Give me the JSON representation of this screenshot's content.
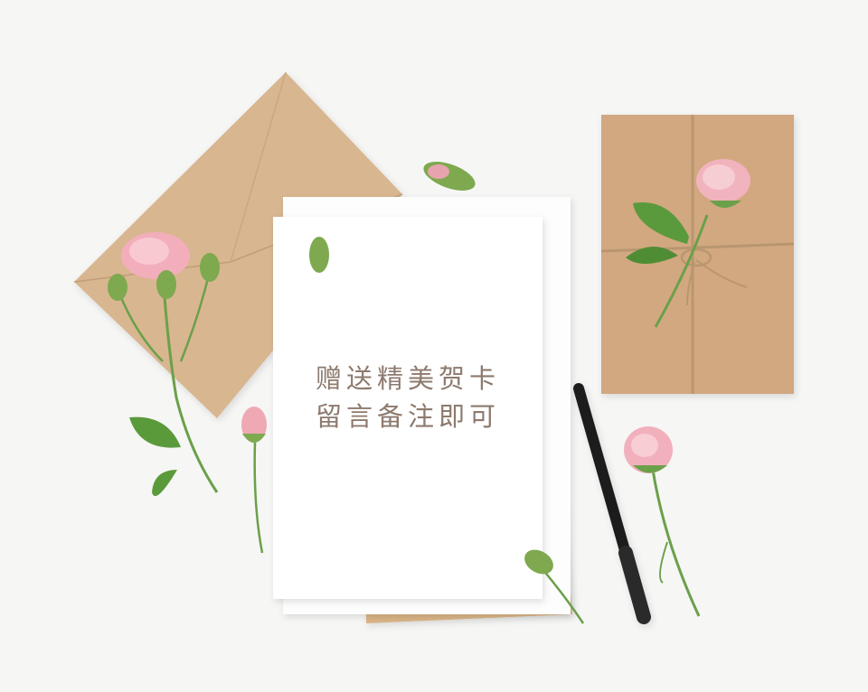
{
  "card": {
    "line1": "赠送精美贺卡",
    "line2": "留言备注即可"
  },
  "colors": {
    "background": "#f6f6f5",
    "kraft": "#d6b38e",
    "card": "#ffffff",
    "text": "#8d7a6e",
    "rose": "#f2aebb",
    "leaf": "#5d9c3f",
    "pen": "#1c1c1c"
  }
}
